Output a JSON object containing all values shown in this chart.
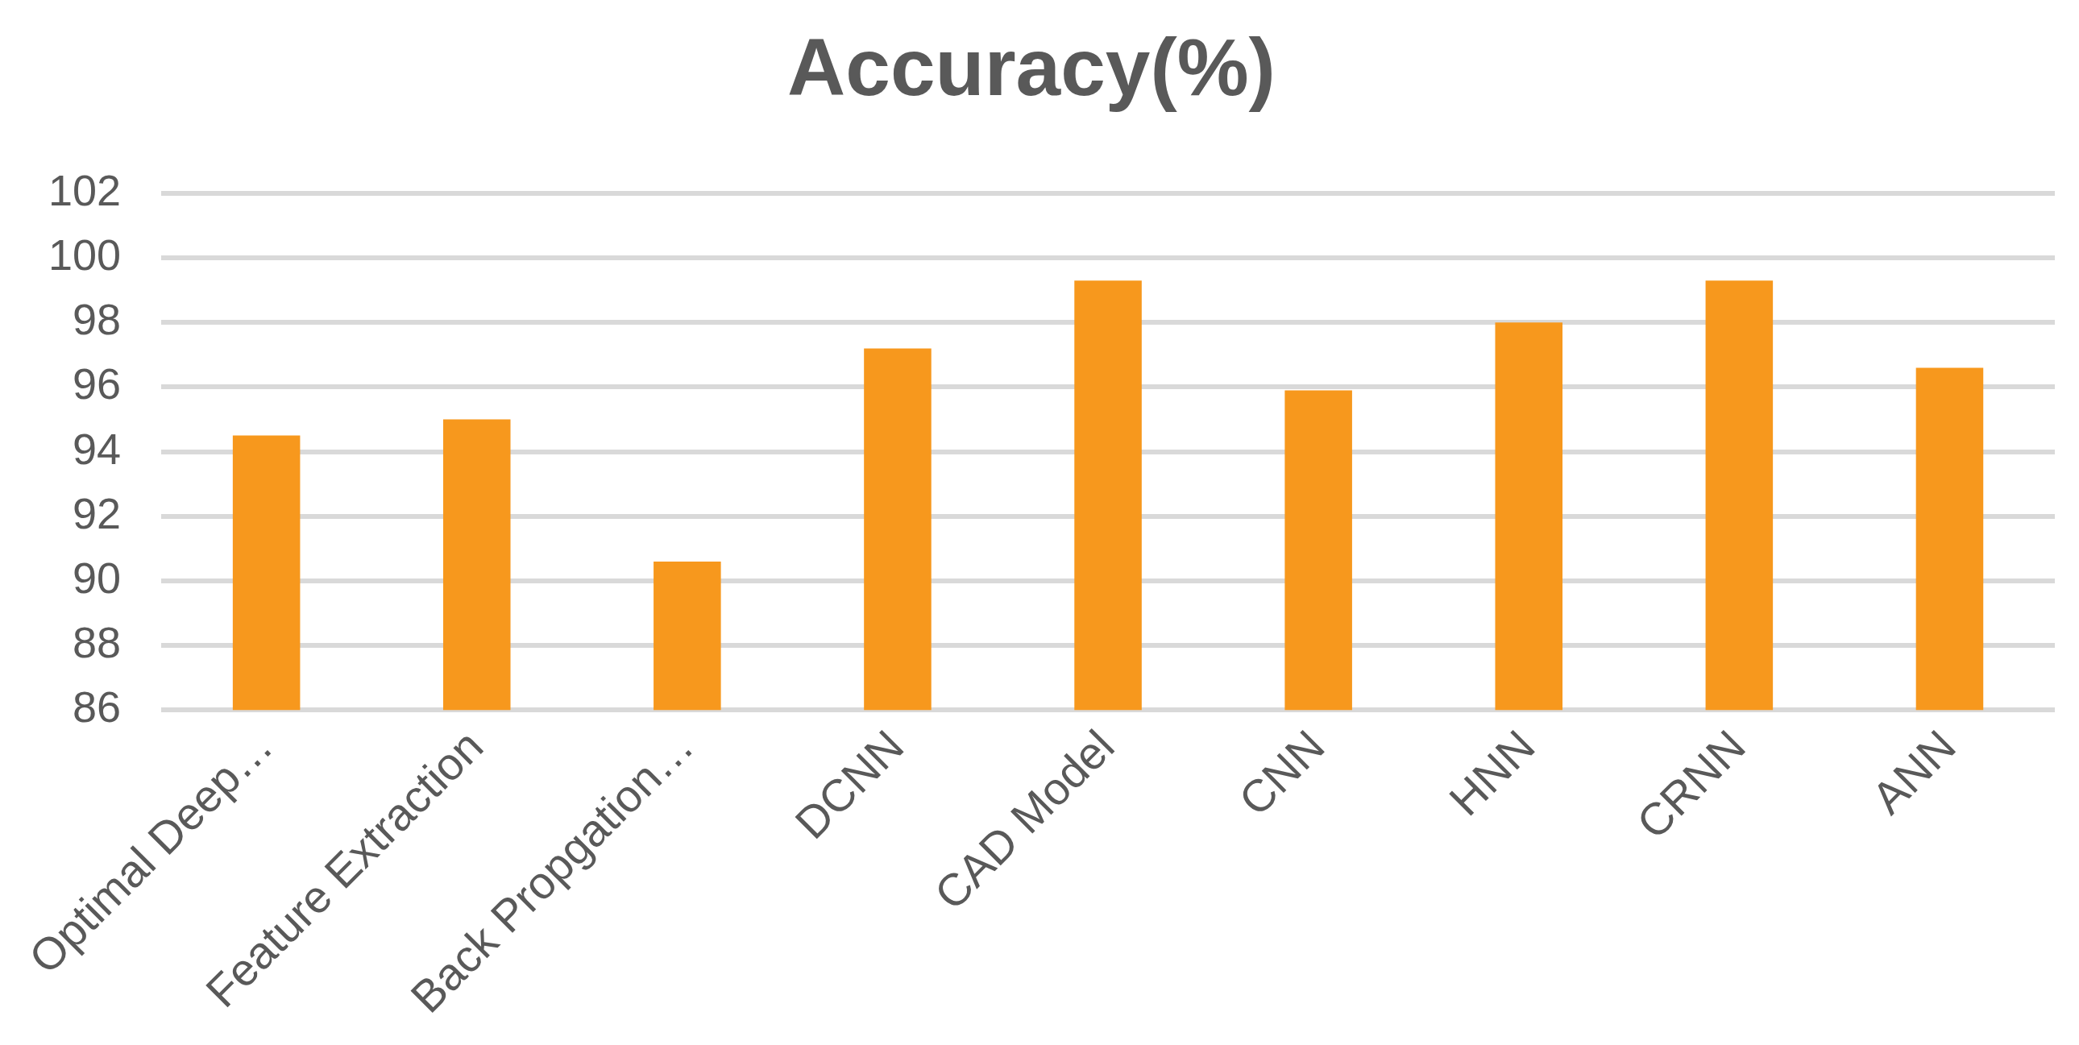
{
  "chart_data": {
    "type": "bar",
    "title": "Accuracy(%)",
    "categories": [
      "Optimal Deep…",
      "Feature Extraction",
      "Back Propgation…",
      "DCNN",
      "CAD Model",
      "CNN",
      "HNN",
      "CRNN",
      "ANN"
    ],
    "values": [
      94.5,
      95.0,
      90.6,
      97.2,
      99.3,
      95.9,
      98.0,
      99.3,
      96.6
    ],
    "color": "#f7981d",
    "ylim": [
      86,
      102
    ],
    "yticks": [
      86,
      88,
      90,
      92,
      94,
      96,
      98,
      100,
      102
    ],
    "grid": "y",
    "legend": false
  }
}
